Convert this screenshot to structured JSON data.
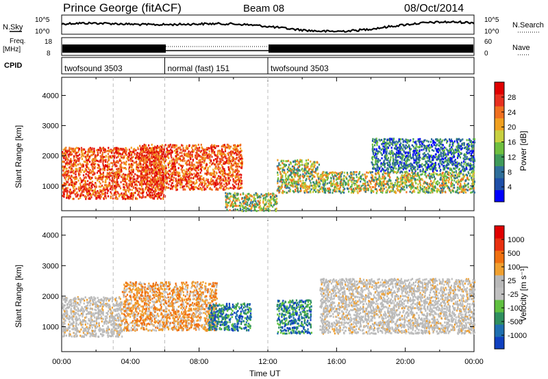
{
  "header": {
    "station": "Prince George (fitACF)",
    "beam": "Beam 08",
    "date": "08/Oct/2014"
  },
  "panels": {
    "nsky_label": "N.Sky",
    "nsky_ticks": [
      "10^5",
      "10^0"
    ],
    "nsearch_label": "N.Search",
    "nsearch_ticks": [
      "10^5",
      "10^0"
    ],
    "freq_label": "Freq.",
    "freq_unit": "[MHz]",
    "freq_ticks": [
      "18",
      "8"
    ],
    "nave_label": "Nave",
    "nave_ticks": [
      "60",
      "0"
    ],
    "cpid_label": "CPID",
    "cpid_segments": [
      {
        "name": "twofsound 3503",
        "start": 0,
        "end": 6
      },
      {
        "name": "normal (fast) 151",
        "start": 6,
        "end": 12
      },
      {
        "name": "twofsound 3503",
        "start": 12,
        "end": 24
      }
    ]
  },
  "colors": {
    "power_scale": [
      "#0000ff",
      "#1f4fa8",
      "#2f6f9a",
      "#3f9a5a",
      "#6fbf3f",
      "#c8d040",
      "#f0a020",
      "#f07020",
      "#e83020",
      "#e00000"
    ],
    "velocity_scale": [
      "#1040c0",
      "#1f6fb0",
      "#2f8f5f",
      "#60c040",
      "#c0c0c0",
      "#b8b8b8",
      "#f0a030",
      "#f07010",
      "#e83010",
      "#e00000"
    ]
  },
  "chart_data": [
    {
      "type": "heatmap",
      "name": "power",
      "xlabel": "",
      "ylabel": "Slant Range [km]",
      "xlim": [
        0,
        24
      ],
      "ylim": [
        180,
        4600
      ],
      "yticks": [
        "1000",
        "2000",
        "3000",
        "4000"
      ],
      "colorbar_label": "Power [dB]",
      "colorbar_ticks": [
        "4",
        "8",
        "12",
        "16",
        "20",
        "24",
        "28"
      ],
      "scatter_regions": [
        {
          "t0": 0.0,
          "t1": 6.0,
          "r0": 600,
          "r1": 2300,
          "level": "high"
        },
        {
          "t0": 4.5,
          "t1": 10.5,
          "r0": 900,
          "r1": 2400,
          "level": "high"
        },
        {
          "t0": 9.5,
          "t1": 12.5,
          "r0": 200,
          "r1": 800,
          "level": "mid"
        },
        {
          "t0": 12.5,
          "t1": 15.0,
          "r0": 800,
          "r1": 1900,
          "level": "mid"
        },
        {
          "t0": 15.0,
          "t1": 24.0,
          "r0": 800,
          "r1": 1500,
          "level": "mid"
        },
        {
          "t0": 18.0,
          "t1": 24.0,
          "r0": 1500,
          "r1": 2600,
          "level": "low"
        }
      ]
    },
    {
      "type": "heatmap",
      "name": "velocity",
      "xlabel": "Time UT",
      "ylabel": "Slant Range [km]",
      "xlim": [
        0,
        24
      ],
      "ylim": [
        180,
        4600
      ],
      "xticks": [
        "00:00",
        "04:00",
        "08:00",
        "12:00",
        "16:00",
        "20:00",
        "00:00"
      ],
      "yticks": [
        "1000",
        "2000",
        "3000",
        "4000"
      ],
      "colorbar_label": "Velocity [m s⁻¹]",
      "colorbar_ticks": [
        "1000",
        "500",
        "100",
        "25",
        "-25",
        "-100",
        "-500",
        "-1000"
      ],
      "scatter_regions": [
        {
          "t0": 0.0,
          "t1": 3.5,
          "r0": 700,
          "r1": 2000,
          "level": "zero"
        },
        {
          "t0": 3.5,
          "t1": 9.0,
          "r0": 900,
          "r1": 2500,
          "level": "away"
        },
        {
          "t0": 8.5,
          "t1": 11.0,
          "r0": 900,
          "r1": 1800,
          "level": "toward"
        },
        {
          "t0": 12.5,
          "t1": 14.5,
          "r0": 800,
          "r1": 1900,
          "level": "toward"
        },
        {
          "t0": 15.0,
          "t1": 24.0,
          "r0": 800,
          "r1": 2600,
          "level": "zero"
        }
      ]
    }
  ]
}
